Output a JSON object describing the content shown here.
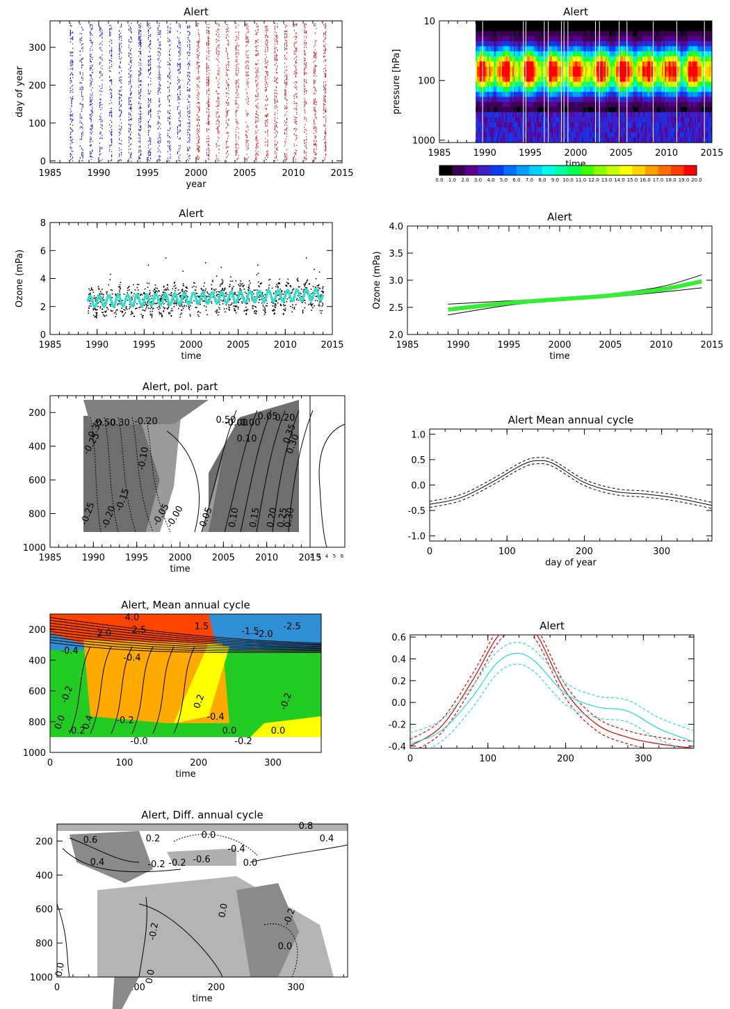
{
  "colorbar": {
    "labels": [
      "0.0",
      "1.0",
      "2.0",
      "3.0",
      "4.0",
      "5.0",
      "6.0",
      "7.0",
      "8.0",
      "9.0",
      "10.0",
      "11.0",
      "12.0",
      "13.0",
      "14.0",
      "15.0",
      "16.0",
      "17.0",
      "18.0",
      "19.0",
      "20.0"
    ],
    "colors": [
      "#000000",
      "#3a0052",
      "#5b008c",
      "#3c1fc8",
      "#0a3cf0",
      "#0070ff",
      "#00a0ff",
      "#00d2ff",
      "#00ffe6",
      "#00ffa0",
      "#00ff50",
      "#3cff00",
      "#8cff00",
      "#c8ff00",
      "#ffff00",
      "#ffd200",
      "#ffa000",
      "#ff6e00",
      "#ff3c00",
      "#ff0000"
    ]
  },
  "chart_data": [
    {
      "id": "p1",
      "type": "scatter",
      "title": "Alert",
      "xlabel": "year",
      "ylabel": "day of year",
      "xlim": [
        1985,
        2015
      ],
      "ylim": [
        -5,
        370
      ],
      "xticks": [
        1985,
        1990,
        1995,
        2000,
        2005,
        2010,
        2015
      ],
      "yticks": [
        0,
        100,
        200,
        300
      ],
      "series_colors": [
        "#0000cc",
        "#dd0000"
      ],
      "note_split_year": 2000
    },
    {
      "id": "p2",
      "type": "heatmap",
      "title": "Alert",
      "xlabel": "time",
      "ylabel": "pressure [hPa]",
      "xlim": [
        1985,
        2015
      ],
      "data_start": 1989,
      "xticks": [
        1985,
        1990,
        1995,
        2000,
        2005,
        2010,
        2015
      ],
      "yticks": [
        10,
        100,
        1000
      ],
      "yscale": "log"
    },
    {
      "id": "p3",
      "type": "scatter",
      "title": "Alert",
      "xlabel": "time",
      "ylabel": "Ozone (mPa)",
      "xlim": [
        1985,
        2015
      ],
      "ylim": [
        0,
        8
      ],
      "xticks": [
        1985,
        1990,
        1995,
        2000,
        2005,
        2010,
        2015
      ],
      "yticks": [
        0,
        2,
        4,
        6,
        8
      ],
      "fit_color": "#33ddcc"
    },
    {
      "id": "p4",
      "type": "line",
      "title": "Alert",
      "xlabel": "time",
      "ylabel": "Ozone (mPa)",
      "xlim": [
        1985,
        2015
      ],
      "ylim": [
        2.0,
        4.0
      ],
      "xticks": [
        1985,
        1990,
        1995,
        2000,
        2005,
        2010,
        2015
      ],
      "yticks": [
        "2.0",
        "2.5",
        "3.0",
        "3.5",
        "4.0"
      ],
      "trend": {
        "x": [
          1989,
          1995,
          2000,
          2005,
          2010,
          2014
        ],
        "y": [
          2.46,
          2.58,
          2.65,
          2.72,
          2.83,
          2.98
        ]
      },
      "upper": {
        "x": [
          1989,
          1995,
          2000,
          2005,
          2010,
          2014
        ],
        "y": [
          2.56,
          2.62,
          2.67,
          2.75,
          2.88,
          3.1
        ]
      },
      "lower": {
        "x": [
          1989,
          1995,
          2000,
          2005,
          2010,
          2014
        ],
        "y": [
          2.36,
          2.54,
          2.63,
          2.69,
          2.78,
          2.86
        ]
      },
      "trend_color": "#33ee33"
    },
    {
      "id": "p5",
      "type": "heatmap",
      "title": "Alert, pol. part",
      "xlabel": "time",
      "xlim": [
        1985,
        2015
      ],
      "ylim": [
        1000,
        100
      ],
      "xticks": [
        1985,
        1990,
        1995,
        2000,
        2005,
        2010,
        2015
      ],
      "yticks": [
        200,
        400,
        600,
        800,
        1000
      ],
      "side_ticks": [
        "2",
        "3",
        "4",
        "5",
        "6"
      ],
      "contour_labels": [
        "-0.50",
        "-0.30",
        "-0.20",
        "-0.35",
        "-0.25",
        "-0.10",
        "-0.15",
        "-0.25",
        "-0.20",
        "-0.05",
        "-0.00",
        "-0.00",
        "0.05",
        "0.10",
        "0.15",
        "0.20",
        "0.25",
        "0.30",
        "0.50",
        "0.00",
        "0.05",
        "0.20",
        "0.35",
        "0.30",
        "0.10"
      ]
    },
    {
      "id": "p6",
      "type": "line",
      "title": "Alert  Mean annual cycle",
      "xlabel": "day of year",
      "xlim": [
        0,
        365
      ],
      "ylim": [
        -1.1,
        1.1
      ],
      "xticks": [
        0,
        100,
        200,
        300
      ],
      "yticks": [
        "-1.0",
        "-0.5",
        "0.0",
        "0.5",
        "1.0"
      ],
      "mean": {
        "x": [
          0,
          40,
          80,
          120,
          140,
          160,
          200,
          240,
          280,
          320,
          365
        ],
        "y": [
          -0.38,
          -0.25,
          0.05,
          0.4,
          0.48,
          0.42,
          0.05,
          -0.13,
          -0.18,
          -0.26,
          -0.4
        ]
      },
      "band": 0.06
    },
    {
      "id": "p7",
      "type": "heatmap",
      "title": "Alert, Mean annual cycle",
      "xlabel": "time",
      "xlim": [
        0,
        365
      ],
      "ylim": [
        1000,
        100
      ],
      "xticks": [
        0,
        100,
        200,
        300
      ],
      "yticks": [
        200,
        400,
        600,
        800,
        1000
      ],
      "contour_labels": [
        "4.0",
        "2.0",
        "2.5",
        "1.5",
        "-1.5",
        "-2.0",
        "-2.5",
        "-0.4",
        "-0.4",
        "-0.2",
        "0.0",
        "-0.2",
        "0.4",
        "-0.2",
        "0.2",
        "-0.4",
        "0.0",
        "-0.2",
        "0.0",
        "-0.2",
        "-0.0"
      ]
    },
    {
      "id": "p8",
      "type": "line",
      "title": "Alert",
      "xlim": [
        0,
        365
      ],
      "ylim": [
        -0.42,
        0.62
      ],
      "xticks": [
        0,
        100,
        200,
        300
      ],
      "yticks": [
        "-0.4",
        "-0.2",
        "0.0",
        "0.2",
        "0.4",
        "0.6"
      ],
      "series": [
        {
          "color": "#dd0000",
          "x": [
            0,
            40,
            80,
            110,
            130,
            160,
            200,
            240,
            280,
            320,
            365
          ],
          "y": [
            -0.4,
            -0.22,
            0.2,
            0.58,
            0.7,
            0.65,
            0.1,
            -0.2,
            -0.32,
            -0.38,
            -0.42
          ],
          "band": 0.06
        },
        {
          "color": "#22dddd",
          "x": [
            0,
            40,
            80,
            110,
            135,
            160,
            200,
            240,
            280,
            320,
            365
          ],
          "y": [
            -0.38,
            -0.26,
            0.05,
            0.35,
            0.45,
            0.38,
            0.08,
            -0.04,
            -0.08,
            -0.24,
            -0.36
          ],
          "band": 0.1
        }
      ]
    },
    {
      "id": "p9",
      "type": "heatmap",
      "title": "Alert, Diff. annual cycle",
      "xlabel": "time",
      "xlim": [
        0,
        365
      ],
      "ylim": [
        1000,
        100
      ],
      "xticks": [
        0,
        100,
        200,
        300
      ],
      "yticks": [
        200,
        400,
        600,
        800,
        1000
      ],
      "contour_labels": [
        "0.6",
        "0.4",
        "-0.2",
        "-0.6",
        "-0.4",
        "0.0",
        "0.0",
        "-0.2",
        "-0.2",
        "0.0",
        "0.0",
        "-0.2",
        "0.0",
        "0.2",
        "0.0",
        "0.8",
        "0.4"
      ]
    }
  ]
}
